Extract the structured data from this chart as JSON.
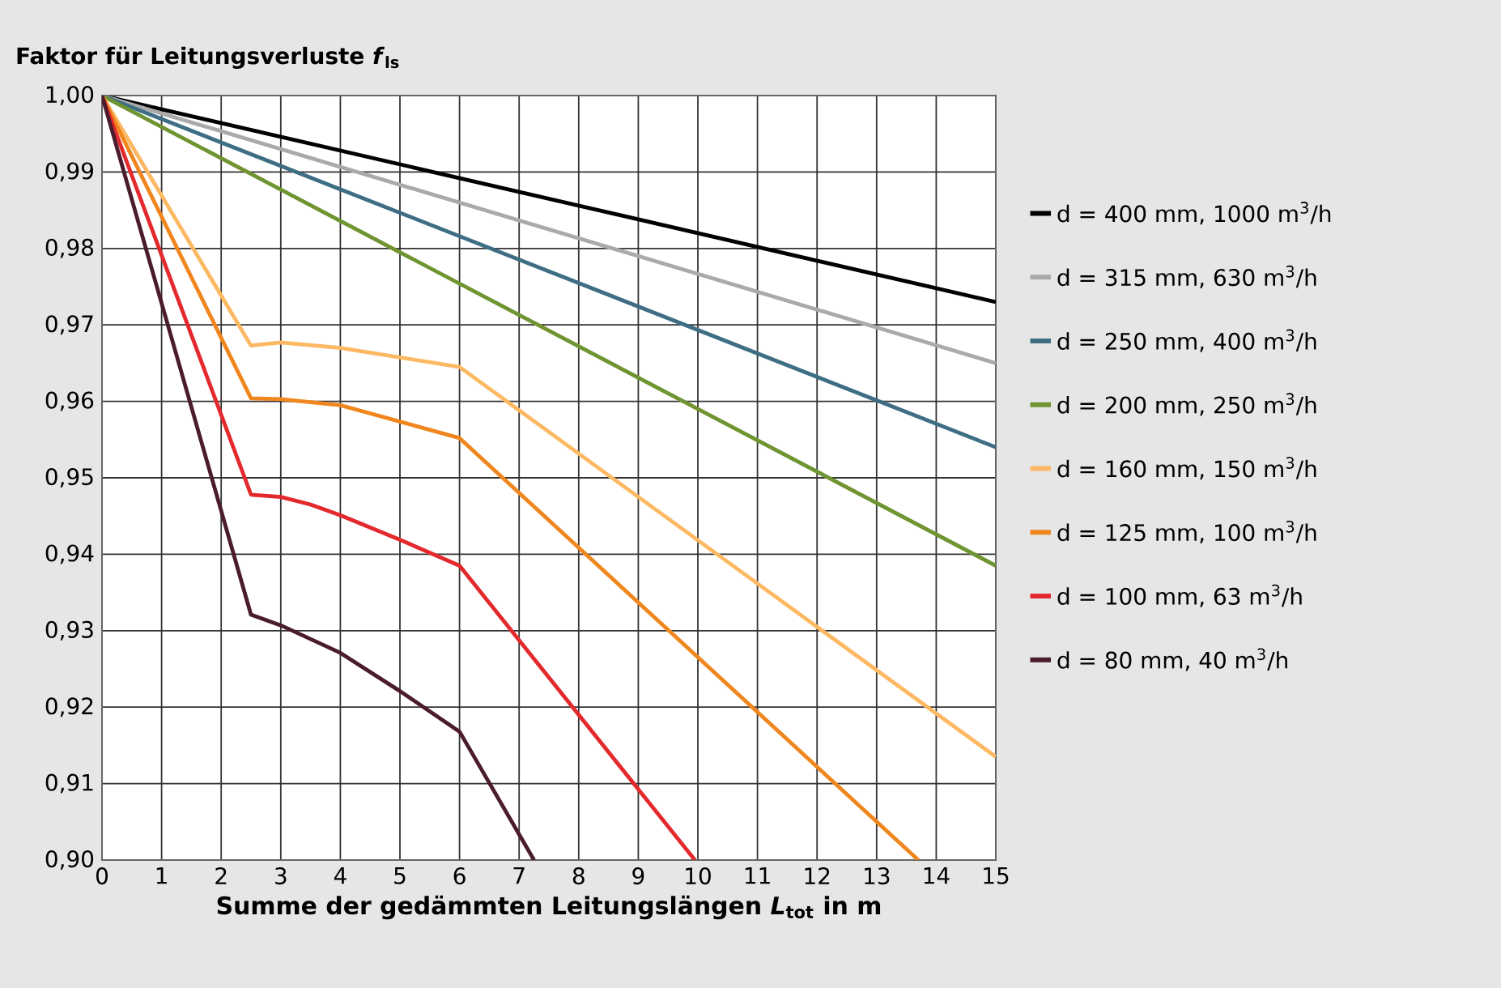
{
  "chart_data": {
    "type": "line",
    "title": "Faktor für Leitungsverluste *f*$_{ls}$",
    "xlabel": "Summe der gedämmten Leitungslängen *L*$_{tot}$ in m",
    "xlim": [
      0,
      15
    ],
    "xticks": [
      0,
      1,
      2,
      3,
      4,
      5,
      6,
      7,
      8,
      9,
      10,
      11,
      12,
      13,
      14,
      15
    ],
    "ylim": [
      0.9,
      1.0
    ],
    "yticks": [
      {
        "value": 0.9,
        "label": "0,90"
      },
      {
        "value": 0.91,
        "label": "0,91"
      },
      {
        "value": 0.92,
        "label": "0,92"
      },
      {
        "value": 0.93,
        "label": "0,93"
      },
      {
        "value": 0.94,
        "label": "0,94"
      },
      {
        "value": 0.95,
        "label": "0,95"
      },
      {
        "value": 0.96,
        "label": "0,96"
      },
      {
        "value": 0.97,
        "label": "0,97"
      },
      {
        "value": 0.98,
        "label": "0,98"
      },
      {
        "value": 0.99,
        "label": "0,99"
      },
      {
        "value": 1.0,
        "label": "1,00"
      }
    ],
    "grid": true,
    "legend": "right",
    "marker": "none",
    "line_style": "solid",
    "series": [
      {
        "name": "d = 400 mm, 1000 m$^{3}$/h",
        "color": "#000000",
        "x": [
          0,
          15
        ],
        "values": [
          1.0,
          0.973
        ]
      },
      {
        "name": "d = 315 mm, 630 m$^{3}$/h",
        "color": "#aaaaaa",
        "x": [
          0,
          15
        ],
        "values": [
          1.0,
          0.965
        ]
      },
      {
        "name": "d = 250 mm, 400 m$^{3}$/h",
        "color": "#3d6e84",
        "x": [
          0,
          15
        ],
        "values": [
          1.0,
          0.954
        ]
      },
      {
        "name": "d = 200 mm, 250 m$^{3}$/h",
        "color": "#6f9431",
        "x": [
          0,
          15
        ],
        "values": [
          1.0,
          0.9385
        ]
      },
      {
        "name": "d = 160 mm, 150 m$^{3}$/h",
        "color": "#fdb863",
        "x": [
          0,
          2.5,
          3,
          4,
          6,
          15
        ],
        "values": [
          1.0,
          0.9673,
          0.9677,
          0.967,
          0.9645,
          0.9135
        ]
      },
      {
        "name": "d = 125 mm, 100 m$^{3}$/h",
        "color": "#f0861e",
        "x": [
          0,
          2.5,
          3,
          4,
          6,
          13.7
        ],
        "values": [
          1.0,
          0.9604,
          0.9603,
          0.9595,
          0.9552,
          0.9
        ]
      },
      {
        "name": "d = 100 mm, 63 m$^{3}$/h",
        "color": "#e3292c",
        "x": [
          0,
          2.5,
          3,
          3.5,
          4,
          5,
          6,
          9.95
        ],
        "values": [
          1.0,
          0.9478,
          0.9475,
          0.9465,
          0.9451,
          0.9419,
          0.9385,
          0.9
        ]
      },
      {
        "name": "d = 80 mm, 40 m$^{3}$/h",
        "color": "#4a1c2c",
        "x": [
          0,
          2.5,
          3,
          4,
          5,
          6,
          7.25
        ],
        "values": [
          1.0,
          0.9321,
          0.9307,
          0.9271,
          0.9221,
          0.9168,
          0.9
        ]
      }
    ]
  }
}
